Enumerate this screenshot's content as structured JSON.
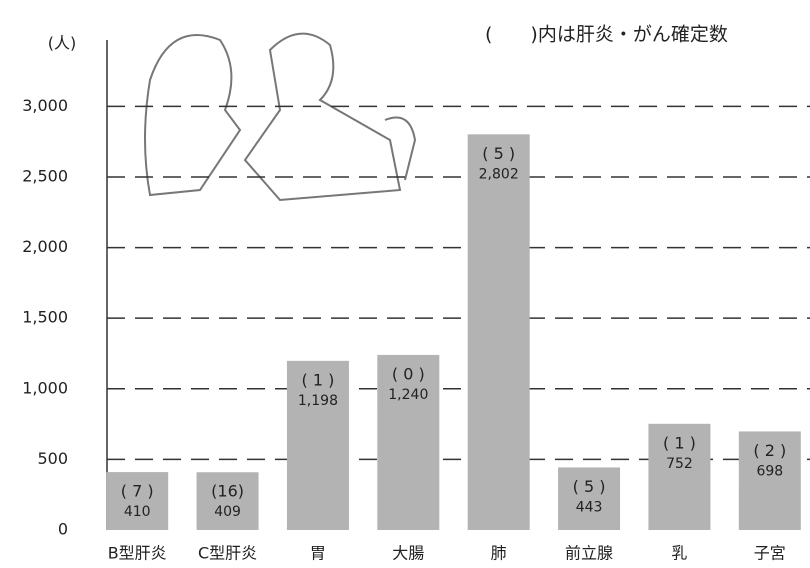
{
  "chart_data": {
    "type": "bar",
    "note": "(　　)内は肝炎・がん確定数",
    "y_label": "(人)",
    "categories": [
      "B型肝炎",
      "C型肝炎",
      "胃",
      "大腸",
      "肺",
      "前立腺",
      "乳",
      "子宮"
    ],
    "values": [
      410,
      409,
      1198,
      1240,
      2802,
      443,
      752,
      698
    ],
    "value_labels": [
      "410",
      "409",
      "1,198",
      "1,240",
      "2,802",
      "443",
      "752",
      "698"
    ],
    "confirmed_labels": [
      "( 7 )",
      "(16)",
      "( 1 )",
      "( 0 )",
      "( 5 )",
      "( 5 )",
      "( 1 )",
      "( 2 )"
    ],
    "color": "#b3b3b3",
    "ylim": [
      0,
      3470
    ],
    "yticks": [
      0,
      500,
      {
        "value": 1000,
        "label": "1,000"
      },
      {
        "value": 1500,
        "label": "1,500"
      },
      {
        "value": 2000,
        "label": "2,000"
      },
      {
        "value": 2500,
        "label": "2,500"
      },
      {
        "value": 3000,
        "label": "3,000"
      }
    ],
    "grid": true
  }
}
